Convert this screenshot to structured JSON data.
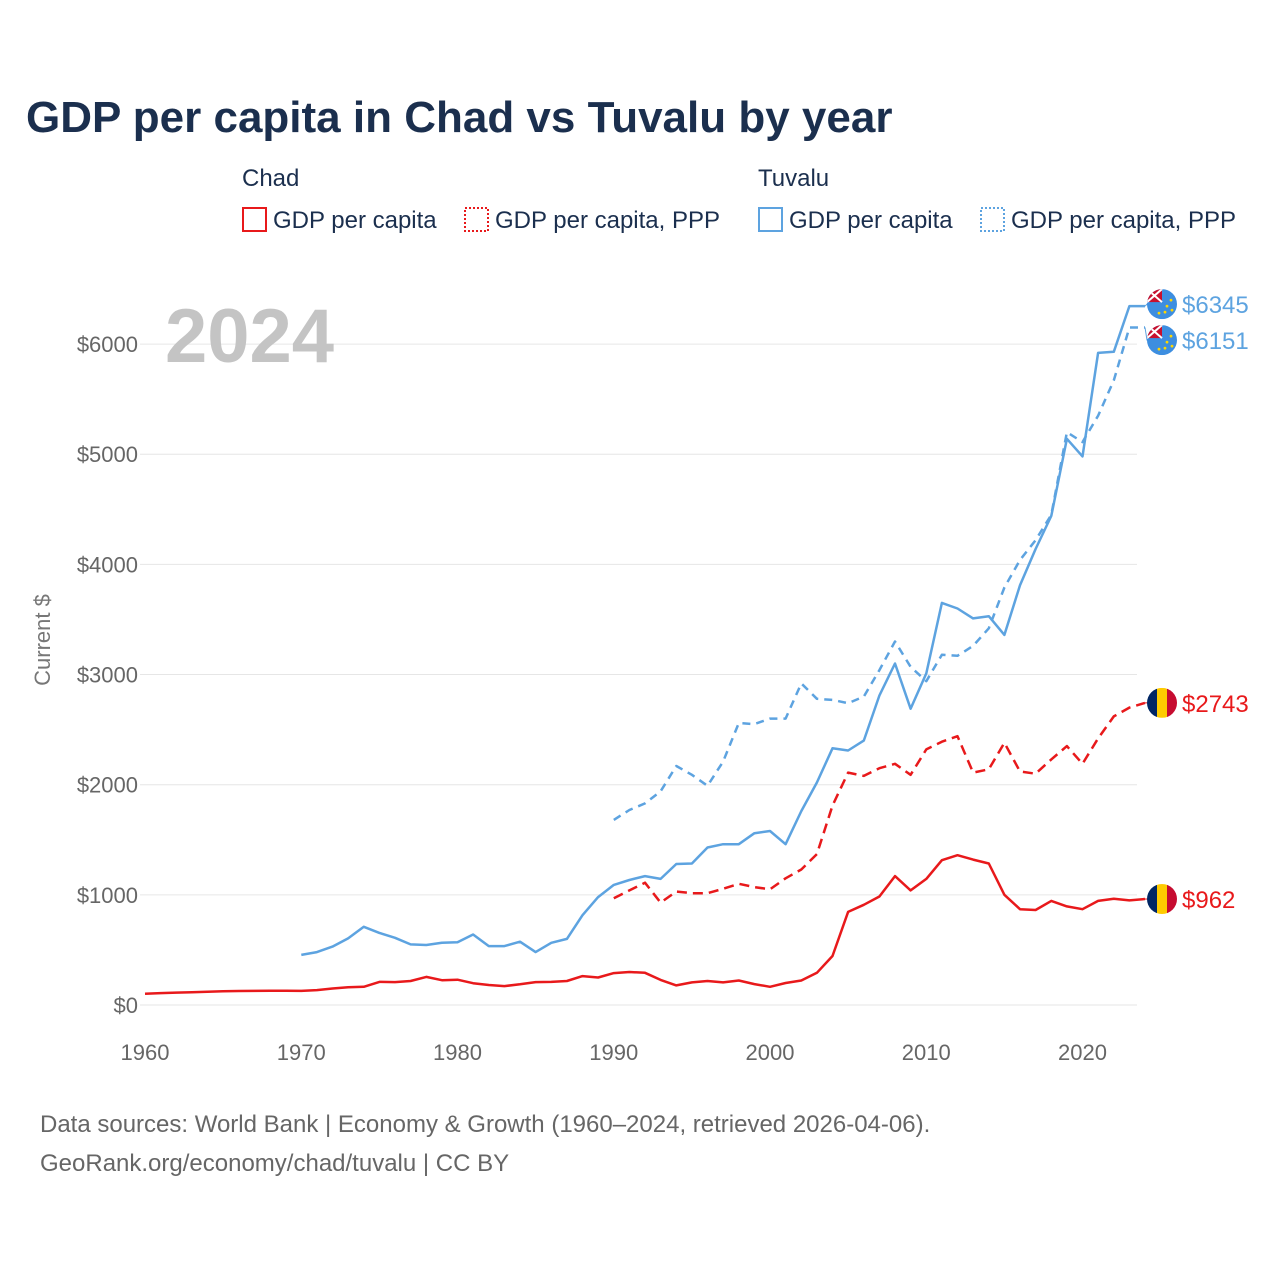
{
  "title": "GDP per capita in Chad vs Tuvalu by year",
  "year_label": "2024",
  "legend": {
    "chad_group": "Chad",
    "tuvalu_group": "Tuvalu",
    "gdp_label": "GDP per capita",
    "ppp_label": "GDP per capita, PPP"
  },
  "colors": {
    "chad": "#e8191b",
    "tuvalu": "#5da3e0",
    "grid": "#e6e6e6"
  },
  "source": {
    "line1": "Data sources: World Bank | Economy & Growth (1960–2024, retrieved 2026-04-06).",
    "line2": "GeoRank.org/economy/chad/tuvalu | CC BY"
  },
  "chart_data": {
    "type": "line",
    "title": "GDP per capita in Chad vs Tuvalu by year",
    "xlabel": "",
    "ylabel": "Current $",
    "xlim": [
      1960,
      2024
    ],
    "ylim": [
      0,
      6600
    ],
    "x_ticks": [
      1960,
      1970,
      1980,
      1990,
      2000,
      2010,
      2020
    ],
    "x_tick_labels": [
      "1960",
      "1970",
      "1980",
      "1990",
      "2000",
      "2010",
      "2020"
    ],
    "y_ticks": [
      0,
      1000,
      2000,
      3000,
      4000,
      5000,
      6000
    ],
    "y_tick_labels": [
      "$0",
      "$1000",
      "$2000",
      "$3000",
      "$4000",
      "$5000",
      "$6000"
    ],
    "grid": true,
    "legend_position": "top",
    "series": [
      {
        "name": "Chad GDP per capita",
        "country": "Chad",
        "style": "solid",
        "end_label": "$962",
        "x": [
          1960,
          1961,
          1962,
          1963,
          1964,
          1965,
          1966,
          1967,
          1968,
          1969,
          1970,
          1971,
          1972,
          1973,
          1974,
          1975,
          1976,
          1977,
          1978,
          1979,
          1980,
          1981,
          1982,
          1983,
          1984,
          1985,
          1986,
          1987,
          1988,
          1989,
          1990,
          1991,
          1992,
          1993,
          1994,
          1995,
          1996,
          1997,
          1998,
          1999,
          2000,
          2001,
          2002,
          2003,
          2004,
          2005,
          2006,
          2007,
          2008,
          2009,
          2010,
          2011,
          2012,
          2013,
          2014,
          2015,
          2016,
          2017,
          2018,
          2019,
          2020,
          2021,
          2022,
          2023,
          2024
        ],
        "values": [
          103,
          108,
          113,
          116,
          120,
          124,
          127,
          128,
          129,
          130,
          128,
          135,
          150,
          162,
          165,
          210,
          208,
          218,
          255,
          225,
          230,
          198,
          182,
          172,
          188,
          208,
          210,
          218,
          262,
          250,
          290,
          300,
          292,
          228,
          178,
          205,
          218,
          205,
          222,
          190,
          165,
          200,
          222,
          292,
          445,
          845,
          910,
          985,
          1170,
          1040,
          1145,
          1315,
          1360,
          1320,
          1285,
          1000,
          870,
          862,
          945,
          895,
          870,
          945,
          965,
          950,
          962
        ]
      },
      {
        "name": "Chad GDP per capita, PPP",
        "country": "Chad",
        "style": "dashed",
        "end_label": "$2743",
        "x": [
          1990,
          1991,
          1992,
          1993,
          1994,
          1995,
          1996,
          1997,
          1998,
          1999,
          2000,
          2001,
          2002,
          2003,
          2004,
          2005,
          2006,
          2007,
          2008,
          2009,
          2010,
          2011,
          2012,
          2013,
          2014,
          2015,
          2016,
          2017,
          2018,
          2019,
          2020,
          2021,
          2022,
          2023,
          2024
        ],
        "values": [
          970,
          1040,
          1110,
          930,
          1030,
          1015,
          1015,
          1055,
          1100,
          1070,
          1050,
          1150,
          1230,
          1370,
          1810,
          2110,
          2080,
          2150,
          2190,
          2090,
          2320,
          2390,
          2440,
          2110,
          2140,
          2380,
          2120,
          2100,
          2230,
          2350,
          2190,
          2420,
          2620,
          2700,
          2743
        ]
      },
      {
        "name": "Tuvalu GDP per capita",
        "country": "Tuvalu",
        "style": "solid",
        "end_label": "$6345",
        "x": [
          1970,
          1971,
          1972,
          1973,
          1974,
          1975,
          1976,
          1977,
          1978,
          1979,
          1980,
          1981,
          1982,
          1983,
          1984,
          1985,
          1986,
          1987,
          1988,
          1989,
          1990,
          1991,
          1992,
          1993,
          1994,
          1995,
          1996,
          1997,
          1998,
          1999,
          2000,
          2001,
          2002,
          2003,
          2004,
          2005,
          2006,
          2007,
          2008,
          2009,
          2010,
          2011,
          2012,
          2013,
          2014,
          2015,
          2016,
          2017,
          2018,
          2019,
          2020,
          2021,
          2022,
          2023,
          2024
        ],
        "values": [
          455,
          480,
          530,
          605,
          710,
          655,
          610,
          550,
          545,
          565,
          570,
          640,
          535,
          535,
          575,
          480,
          565,
          600,
          815,
          980,
          1090,
          1135,
          1170,
          1145,
          1280,
          1285,
          1430,
          1460,
          1460,
          1560,
          1580,
          1460,
          1760,
          2020,
          2330,
          2310,
          2400,
          2810,
          3100,
          2690,
          3010,
          3650,
          3600,
          3510,
          3530,
          3360,
          3810,
          4140,
          4440,
          5140,
          4980,
          5920,
          5930,
          6345,
          6345
        ]
      },
      {
        "name": "Tuvalu GDP per capita, PPP",
        "country": "Tuvalu",
        "style": "dotted",
        "end_label": "$6151",
        "x": [
          1990,
          1991,
          1992,
          1993,
          1994,
          1995,
          1996,
          1997,
          1998,
          1999,
          2000,
          2001,
          2002,
          2003,
          2004,
          2005,
          2006,
          2007,
          2008,
          2009,
          2010,
          2011,
          2012,
          2013,
          2014,
          2015,
          2016,
          2017,
          2018,
          2019,
          2020,
          2021,
          2022,
          2023,
          2024
        ],
        "values": [
          1680,
          1770,
          1830,
          1940,
          2170,
          2090,
          1990,
          2210,
          2560,
          2550,
          2600,
          2600,
          2920,
          2780,
          2770,
          2740,
          2800,
          3040,
          3300,
          3070,
          2940,
          3180,
          3170,
          3260,
          3420,
          3790,
          4040,
          4220,
          4450,
          5200,
          5110,
          5350,
          5670,
          6151,
          6151
        ]
      }
    ]
  }
}
